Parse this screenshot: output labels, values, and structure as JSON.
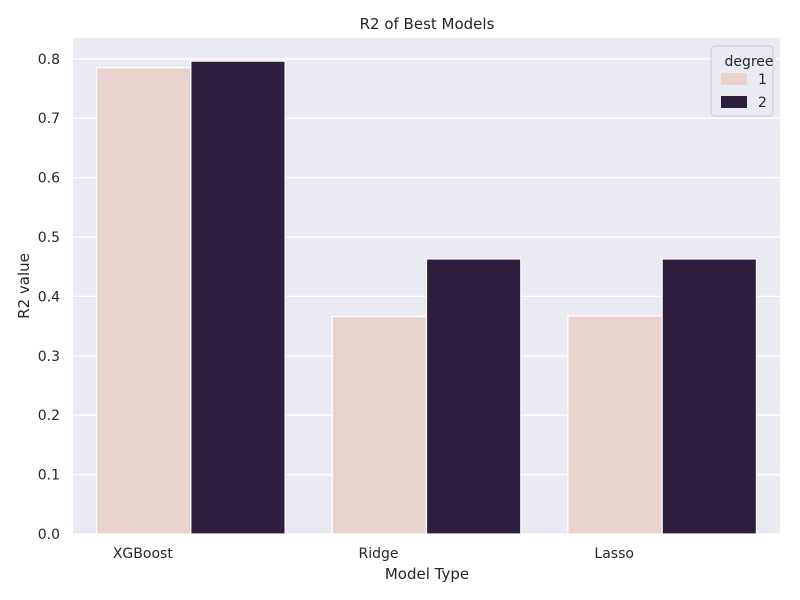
{
  "chart_data": {
    "type": "bar",
    "title": "R2 of Best Models",
    "xlabel": "Model Type",
    "ylabel": "R2 value",
    "categories": [
      "XGBoost",
      "Ridge",
      "Lasso"
    ],
    "series": [
      {
        "name": "1",
        "color": "#ead3cf",
        "values": [
          0.785,
          0.366,
          0.367
        ]
      },
      {
        "name": "2",
        "color": "#2d1e3e",
        "values": [
          0.796,
          0.463,
          0.463
        ]
      }
    ],
    "ylim": [
      0,
      0.835
    ],
    "yticks": [
      0.0,
      0.1,
      0.2,
      0.3,
      0.4,
      0.5,
      0.6,
      0.7,
      0.8
    ],
    "ytick_labels": [
      "0.0",
      "0.1",
      "0.2",
      "0.3",
      "0.4",
      "0.5",
      "0.6",
      "0.7",
      "0.8"
    ],
    "grid": true,
    "legend": {
      "title": "degree",
      "placement": "top-right"
    },
    "colors": {
      "plot_background": "#eaeaf2",
      "grid": "#ffffff"
    }
  }
}
